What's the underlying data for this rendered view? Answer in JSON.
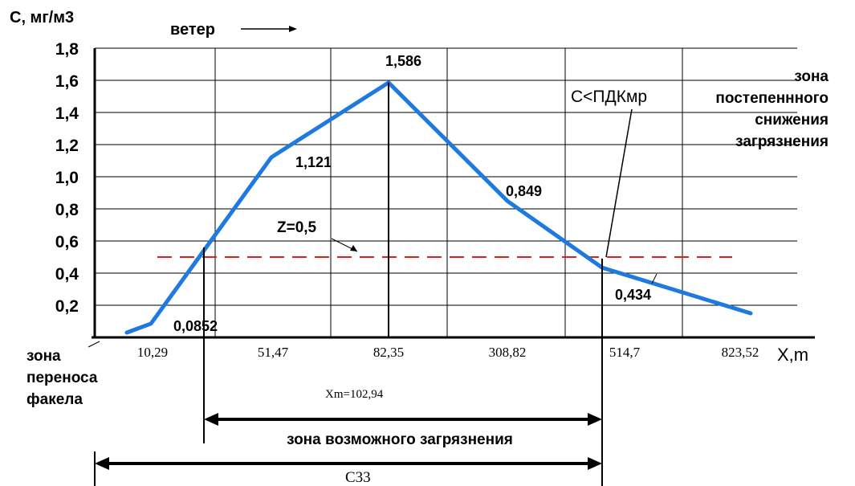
{
  "chart_data": {
    "type": "line",
    "ylabel": "С, мг/м3",
    "xlabel": "X,m",
    "wind_label": "ветер",
    "y_ticks": [
      "0,2",
      "0,4",
      "0,6",
      "0,8",
      "1,0",
      "1,2",
      "1,4",
      "1,6",
      "1,8"
    ],
    "ylim": [
      0,
      1.8
    ],
    "categories": [
      "10,29",
      "51,47",
      "82,35",
      "308,82",
      "514,7",
      "823,52"
    ],
    "series": [
      {
        "color": "#1f7ae0",
        "points": [
          {
            "x": "10,29",
            "y": 0.0852,
            "label": "0,0852"
          },
          {
            "x": "51,47",
            "y": 1.121,
            "label": "1,121"
          },
          {
            "x": "82,35",
            "y": 1.586,
            "label": "1,586"
          },
          {
            "x": "308,82",
            "y": 0.849,
            "label": "0,849"
          },
          {
            "x": "514,7",
            "y": 0.434,
            "label": "0,434"
          },
          {
            "x": "823,52",
            "y": 0.15,
            "label": ""
          }
        ]
      }
    ],
    "threshold": {
      "y": 0.5,
      "label": "Z=0,5",
      "color": "#e02020"
    },
    "grid": true,
    "xm_label": "Xm=102,94",
    "annotations": {
      "zone_transfer": [
        "зона",
        "переноса",
        "факела"
      ],
      "zone_decrease": [
        "зона",
        "постепеннного",
        "снижения",
        "загрязнения"
      ],
      "pdk": "С<ПДКмр",
      "zone_possible": "зона возможного загрязнения",
      "czz": "С33"
    }
  }
}
